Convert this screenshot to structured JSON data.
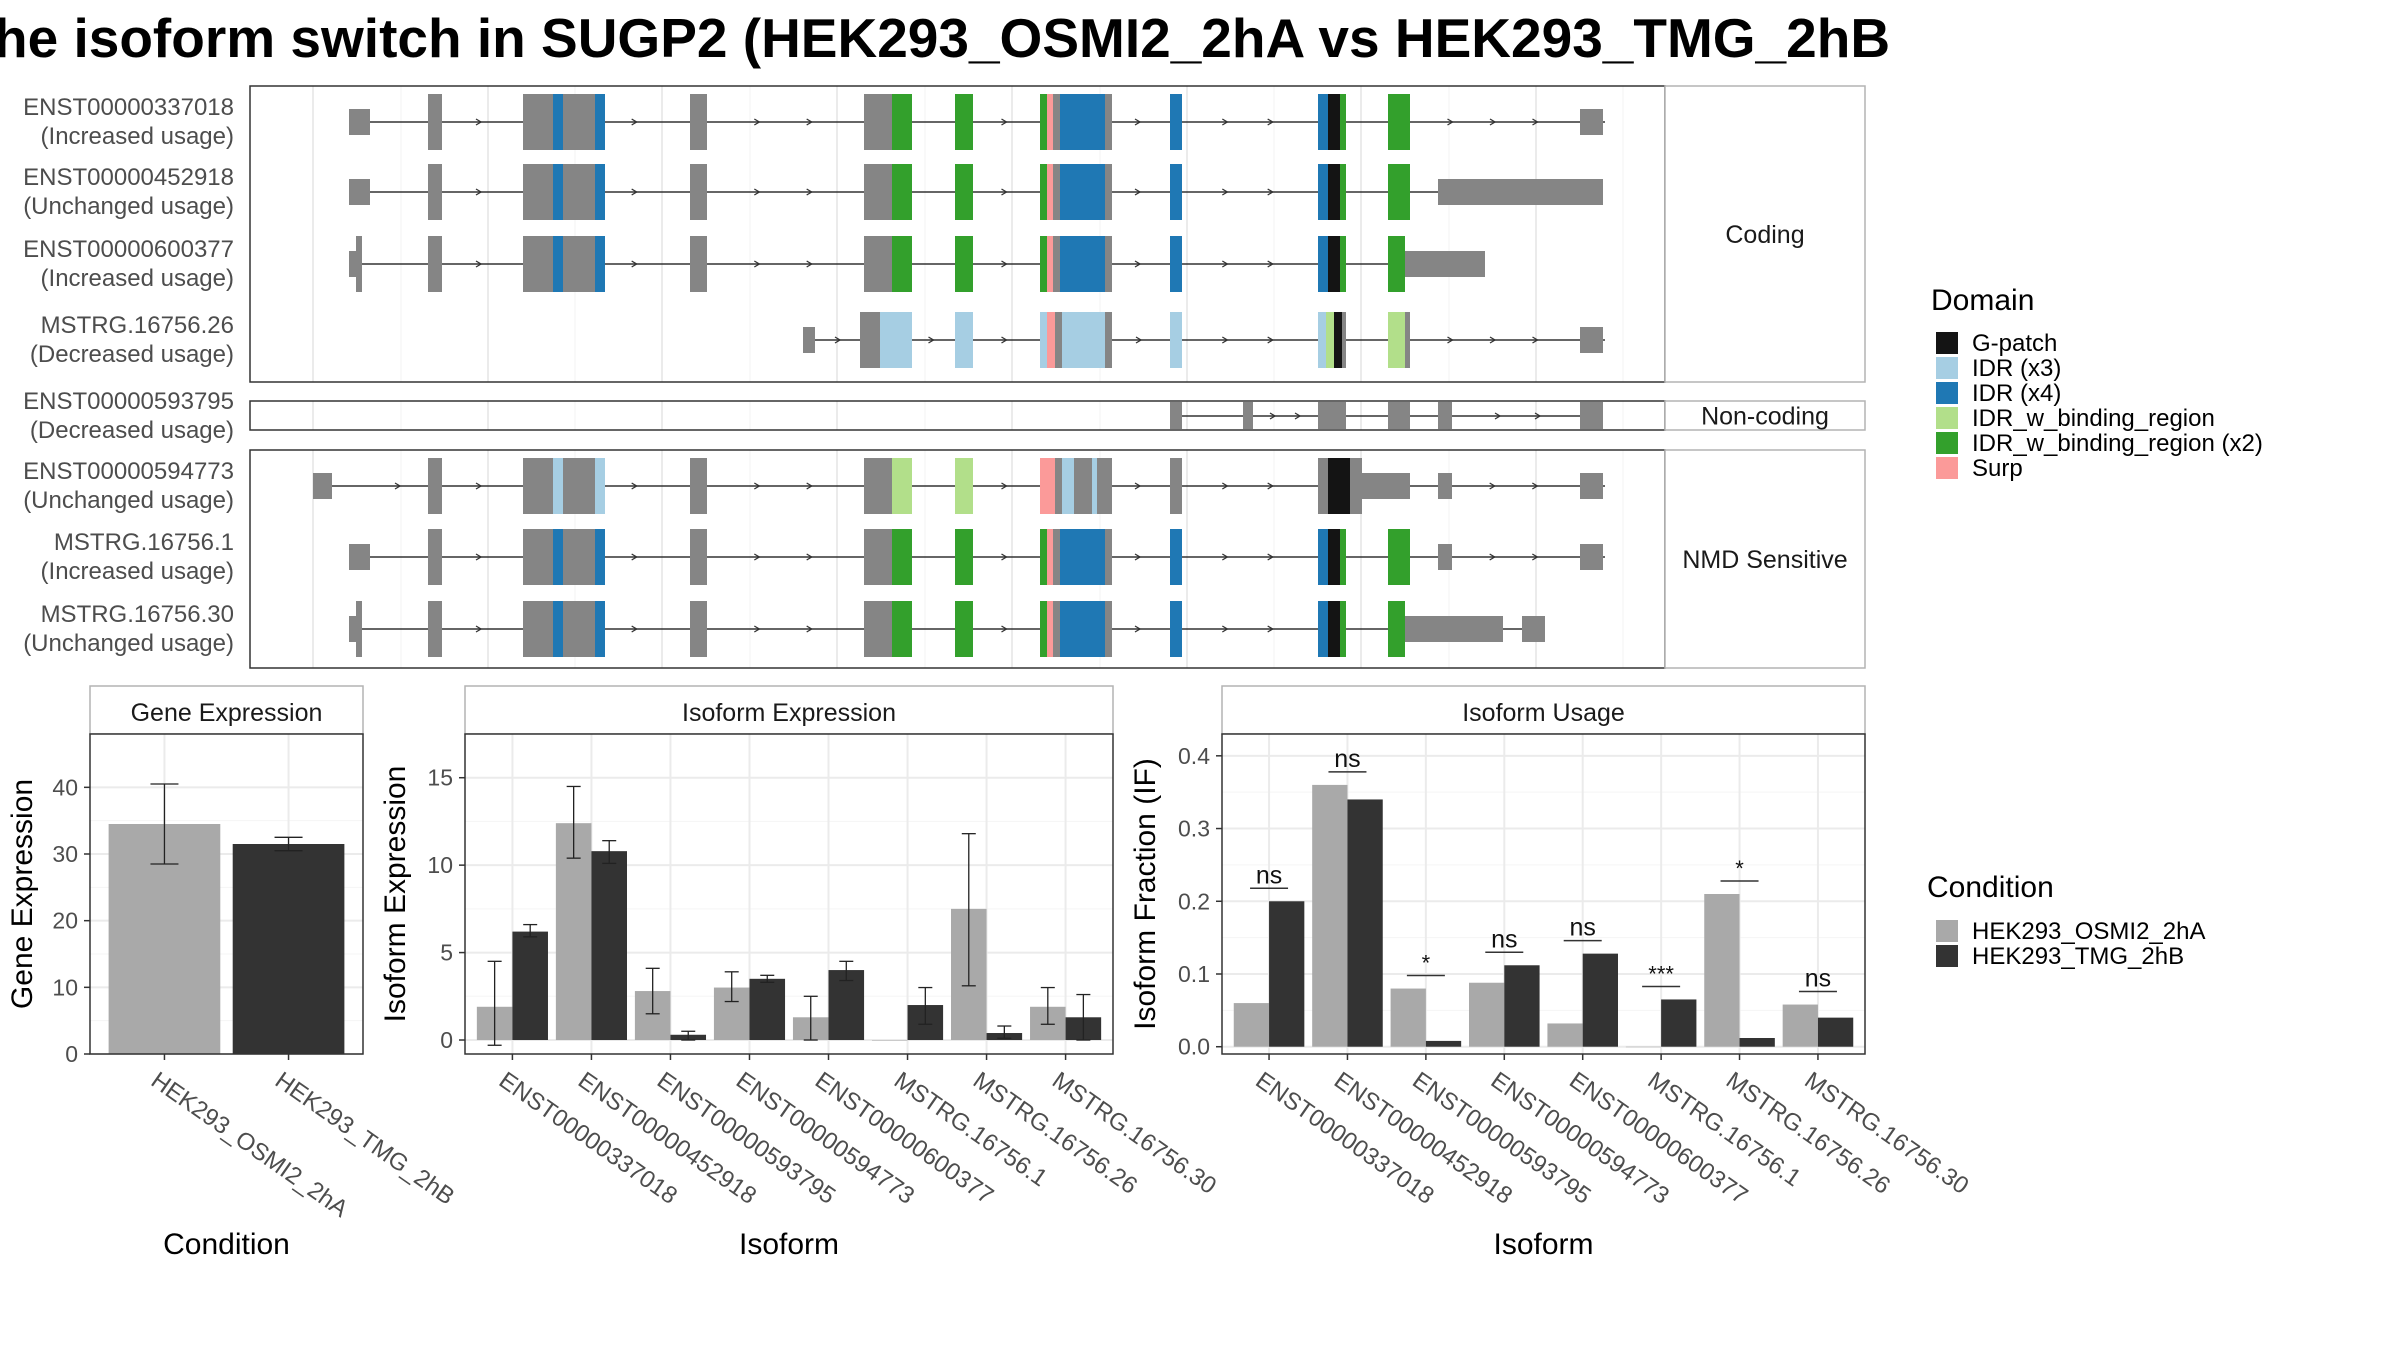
{
  "title": "he isoform switch in SUGP2 (HEK293_OSMI2_2hA vs HEK293_TMG_2hB",
  "colors": {
    "grey_exon": "#858585",
    "g_patch": "#141414",
    "idr_x3": "#a6cee3",
    "idr_x4": "#1f78b4",
    "idr_wbr": "#b2df8a",
    "idr_wbr_x2": "#33a02c",
    "surp": "#fb9a99",
    "cond_a": "#a9a9a9",
    "cond_b": "#333333"
  },
  "isoforms": [
    {
      "id": "ENST00000337018",
      "status": "(Increased usage)",
      "group": "Coding"
    },
    {
      "id": "ENST00000452918",
      "status": "(Unchanged usage)",
      "group": "Coding"
    },
    {
      "id": "ENST00000600377",
      "status": "(Increased usage)",
      "group": "Coding"
    },
    {
      "id": "MSTRG.16756.26",
      "status": "(Decreased usage)",
      "group": "Coding"
    },
    {
      "id": "ENST00000593795",
      "status": "(Decreased usage)",
      "group": "Non-coding"
    },
    {
      "id": "ENST00000594773",
      "status": "(Unchanged usage)",
      "group": "NMD Sensitive"
    },
    {
      "id": "MSTRG.16756.1",
      "status": "(Increased usage)",
      "group": "NMD Sensitive"
    },
    {
      "id": "MSTRG.16756.30",
      "status": "(Unchanged usage)",
      "group": "NMD Sensitive"
    }
  ],
  "groups": [
    "Coding",
    "Non-coding",
    "NMD Sensitive"
  ],
  "legend_domain": {
    "title": "Domain",
    "items": [
      {
        "label": "G-patch",
        "color": "#141414"
      },
      {
        "label": "IDR (x3)",
        "color": "#a6cee3"
      },
      {
        "label": "IDR (x4)",
        "color": "#1f78b4"
      },
      {
        "label": "IDR_w_binding_region",
        "color": "#b2df8a"
      },
      {
        "label": "IDR_w_binding_region (x2)",
        "color": "#33a02c"
      },
      {
        "label": "Surp",
        "color": "#fb9a99"
      }
    ]
  },
  "legend_condition": {
    "title": "Condition",
    "items": [
      {
        "label": "HEK293_OSMI2_2hA",
        "color": "#a9a9a9"
      },
      {
        "label": "HEK293_TMG_2hB",
        "color": "#333333"
      }
    ]
  },
  "chart_data": [
    {
      "type": "bar",
      "title": "Gene Expression",
      "xlabel": "Condition",
      "ylabel": "Gene Expression",
      "ylim": [
        0,
        48
      ],
      "yticks": [
        0,
        10,
        20,
        30,
        40
      ],
      "categories": [
        "HEK293_OSMI2_2hA",
        "HEK293_TMG_2hB"
      ],
      "values": [
        34.5,
        31.5
      ],
      "errors": [
        [
          28.5,
          40.5
        ],
        [
          30.5,
          32.5
        ]
      ]
    },
    {
      "type": "bar",
      "title": "Isoform Expression",
      "xlabel": "Isoform",
      "ylabel": "Isoform Expression",
      "ylim": [
        -0.8,
        17.5
      ],
      "yticks": [
        0,
        5,
        10,
        15
      ],
      "categories": [
        "ENST00000337018",
        "ENST00000452918",
        "ENST00000593795",
        "ENST00000594773",
        "ENST00000600377",
        "MSTRG.16756.1",
        "MSTRG.16756.26",
        "MSTRG.16756.30"
      ],
      "series": [
        {
          "name": "HEK293_OSMI2_2hA",
          "values": [
            1.9,
            12.4,
            2.8,
            3.0,
            1.3,
            0.0,
            7.5,
            1.9
          ],
          "errors": [
            [
              -0.3,
              4.5
            ],
            [
              10.4,
              14.5
            ],
            [
              1.5,
              4.1
            ],
            [
              2.2,
              3.9
            ],
            [
              0.0,
              2.5
            ],
            [
              0.0,
              0.0
            ],
            [
              3.1,
              11.8
            ],
            [
              0.9,
              3.0
            ]
          ]
        },
        {
          "name": "HEK293_TMG_2hB",
          "values": [
            6.2,
            10.8,
            0.3,
            3.5,
            4.0,
            2.0,
            0.4,
            1.3
          ],
          "errors": [
            [
              5.9,
              6.6
            ],
            [
              10.1,
              11.4
            ],
            [
              0.0,
              0.5
            ],
            [
              3.3,
              3.7
            ],
            [
              3.4,
              4.5
            ],
            [
              0.9,
              3.0
            ],
            [
              0.1,
              0.8
            ],
            [
              0.0,
              2.6
            ]
          ]
        }
      ]
    },
    {
      "type": "bar",
      "title": "Isoform Usage",
      "xlabel": "Isoform",
      "ylabel": "Isoform Fraction (IF)",
      "ylim": [
        -0.01,
        0.43
      ],
      "yticks": [
        0.0,
        0.1,
        0.2,
        0.3,
        0.4
      ],
      "ytick_labels": [
        "0.0",
        "0.1",
        "0.2",
        "0.3",
        "0.4"
      ],
      "categories": [
        "ENST00000337018",
        "ENST00000452918",
        "ENST00000593795",
        "ENST00000594773",
        "ENST00000600377",
        "MSTRG.16756.1",
        "MSTRG.16756.26",
        "MSTRG.16756.30"
      ],
      "series": [
        {
          "name": "HEK293_OSMI2_2hA",
          "values": [
            0.06,
            0.36,
            0.08,
            0.088,
            0.032,
            0.0,
            0.21,
            0.058
          ]
        },
        {
          "name": "HEK293_TMG_2hB",
          "values": [
            0.2,
            0.34,
            0.008,
            0.112,
            0.128,
            0.065,
            0.012,
            0.04
          ]
        }
      ],
      "significance": [
        "ns",
        "ns",
        "*",
        "ns",
        "ns",
        "***",
        "*",
        "ns"
      ]
    }
  ]
}
